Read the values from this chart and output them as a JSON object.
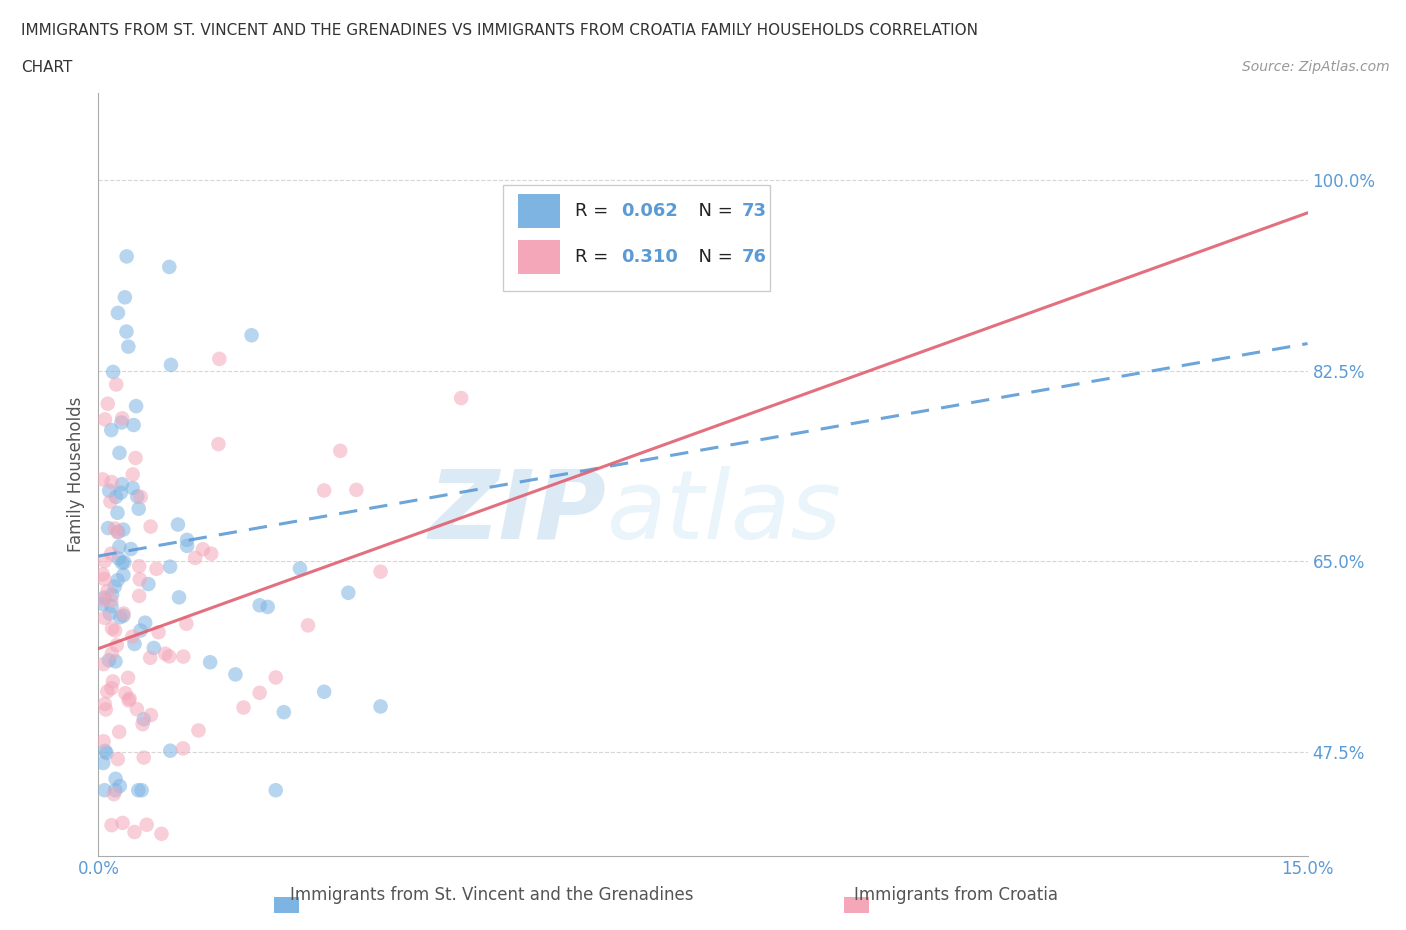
{
  "title_line1": "IMMIGRANTS FROM ST. VINCENT AND THE GRENADINES VS IMMIGRANTS FROM CROATIA FAMILY HOUSEHOLDS CORRELATION",
  "title_line2": "CHART",
  "source_text": "Source: ZipAtlas.com",
  "ylabel": "Family Households",
  "xlim": [
    0.0,
    15.0
  ],
  "ylim": [
    38.0,
    108.0
  ],
  "xtick_positions": [
    0.0,
    5.0,
    10.0,
    15.0
  ],
  "xtick_labels": [
    "0.0%",
    "",
    "",
    "15.0%"
  ],
  "ytick_positions": [
    47.5,
    65.0,
    82.5,
    100.0
  ],
  "ytick_labels": [
    "47.5%",
    "65.0%",
    "82.5%",
    "100.0%"
  ],
  "color_blue": "#7EB4E2",
  "color_pink": "#F4A7B9",
  "trendline_blue_color": "#5B9BD5",
  "trendline_pink_color": "#E06070",
  "tick_color": "#5B9BD5",
  "watermark_text": "ZIPatlas",
  "watermark_color": "#D0E8F8",
  "background_color": "#FFFFFF",
  "grid_color": "#CCCCCC",
  "legend_r1_label": "R = 0.062",
  "legend_n1_label": "N = 73",
  "legend_r2_label": "R = 0.310",
  "legend_n2_label": "N = 76",
  "trendline_blue_x0": 0.0,
  "trendline_blue_y0": 65.5,
  "trendline_blue_x1": 15.0,
  "trendline_blue_y1": 85.0,
  "trendline_pink_x0": 0.0,
  "trendline_pink_y0": 57.0,
  "trendline_pink_x1": 15.0,
  "trendline_pink_y1": 97.0,
  "scatter_alpha": 0.55,
  "scatter_size": 110
}
